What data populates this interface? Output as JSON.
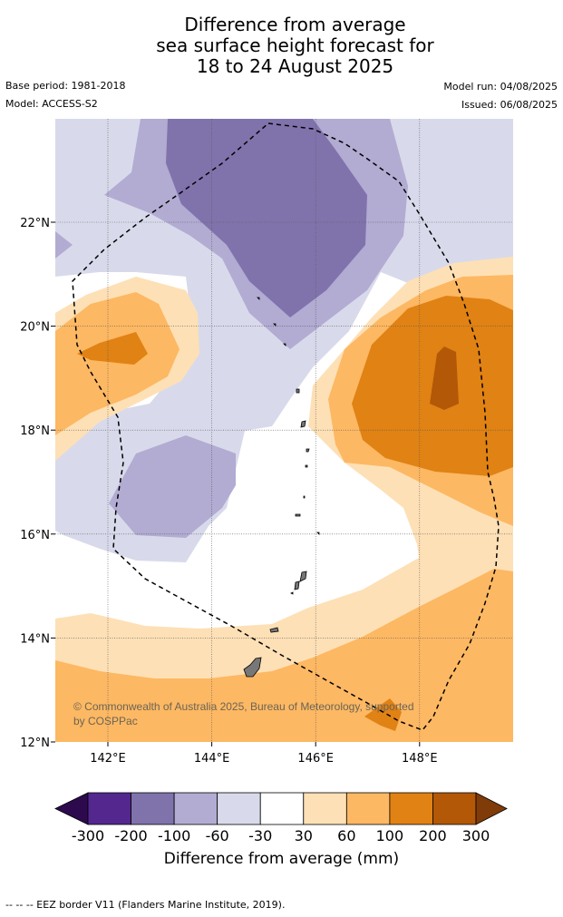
{
  "title": {
    "line1": "Difference from average",
    "line2": "sea surface height forecast for",
    "line3": "18 to 24 August 2025"
  },
  "meta": {
    "base_period": "Base period: 1981-2018",
    "model": "Model: ACCESS-S2",
    "model_run": "Model run: 04/08/2025",
    "issued": "Issued: 06/08/2025"
  },
  "map": {
    "lon_range": [
      141,
      149.8
    ],
    "lat_range": [
      12,
      23.9
    ],
    "lat_ticks": [
      "22°N",
      "20°N",
      "18°N",
      "16°N",
      "14°N",
      "12°N"
    ],
    "lon_ticks": [
      "142°E",
      "144°E",
      "146°E",
      "148°E"
    ],
    "copyright_line1": "© Commonwealth of Australia 2025, Bureau of Meteorology, supported",
    "copyright_line2": "by COSPPac"
  },
  "colorbar": {
    "label": "Difference from average (mm)",
    "ticks": [
      "-300",
      "-200",
      "-100",
      "-60",
      "-30",
      "30",
      "60",
      "100",
      "200",
      "300"
    ],
    "colors": [
      "#2d0a4e",
      "#54278f",
      "#8073ac",
      "#b2abd2",
      "#d8daeb",
      "#ffffff",
      "#fee0b6",
      "#fdb863",
      "#e08214",
      "#b35806",
      "#7f3b08"
    ]
  },
  "footnote": "--  --  -- EEZ border V11 (Flanders Marine Institute, 2019)."
}
